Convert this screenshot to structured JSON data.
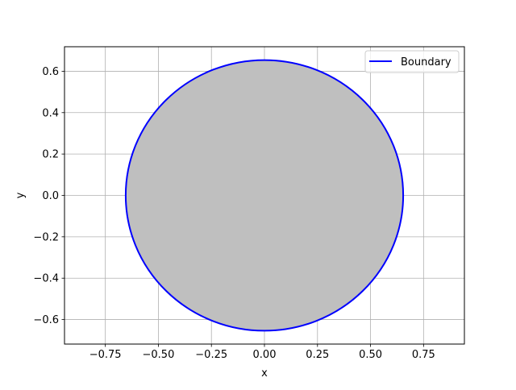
{
  "chart_data": {
    "type": "line",
    "title": "",
    "xlabel": "x",
    "ylabel": "y",
    "xlim": [
      -0.9425,
      0.9425
    ],
    "ylim": [
      -0.7185,
      0.7185
    ],
    "xticks": [
      -0.75,
      -0.5,
      -0.25,
      0.0,
      0.25,
      0.5,
      0.75
    ],
    "xtick_labels": [
      "−0.75",
      "−0.50",
      "−0.25",
      "0.00",
      "0.25",
      "0.50",
      "0.75"
    ],
    "yticks": [
      -0.6,
      -0.4,
      -0.2,
      0.0,
      0.2,
      0.4,
      0.6
    ],
    "ytick_labels": [
      "−0.6",
      "−0.4",
      "−0.2",
      "0.0",
      "0.2",
      "0.4",
      "0.6"
    ],
    "grid": true,
    "legend_position": "upper-right",
    "aspect": "equal",
    "series": [
      {
        "name": "Boundary",
        "shape": "circle",
        "center": [
          0.0,
          0.0
        ],
        "radius": 0.654,
        "color": "#0000ff",
        "fill_color": "#bfbfbf"
      }
    ]
  }
}
